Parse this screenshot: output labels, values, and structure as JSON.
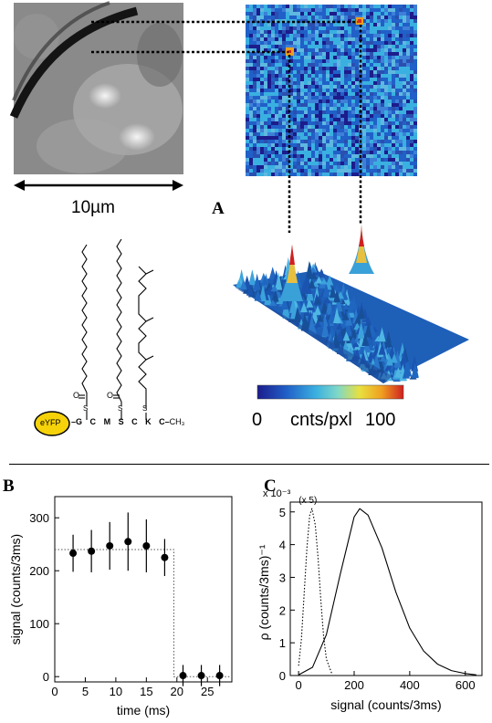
{
  "panel_a": {
    "label": "A",
    "scale_bar_label": "10µm",
    "colorbar": {
      "min_label": "0",
      "unit_label": "cnts/pxl",
      "max_label": "100",
      "colors": [
        "#1c1c8c",
        "#2060c8",
        "#3ab0e0",
        "#7fd8c8",
        "#e8e040",
        "#f0a020",
        "#d02020"
      ]
    },
    "molecule": {
      "protein_label": "eYFP",
      "sequence": [
        "G",
        "C",
        "M",
        "S",
        "C",
        "K",
        "C"
      ],
      "terminal_group": "CH₃",
      "bond_atoms": [
        "O",
        "O",
        "S",
        "S",
        "S"
      ]
    }
  },
  "panel_b": {
    "label": "B",
    "chart_data": {
      "type": "scatter",
      "xlabel": "time (ms)",
      "ylabel": "signal (counts/3ms)",
      "xlim": [
        0,
        29
      ],
      "ylim": [
        -10,
        340
      ],
      "x_ticks": [
        "0",
        "5",
        "10",
        "15",
        "20",
        "25"
      ],
      "y_ticks": [
        "0",
        "100",
        "200",
        "300"
      ],
      "series": [
        {
          "x": [
            3,
            6,
            9,
            12,
            15,
            18,
            21,
            24,
            27
          ],
          "y": [
            233,
            237,
            247,
            255,
            247,
            225,
            2,
            2,
            2
          ],
          "err": [
            35,
            40,
            45,
            55,
            50,
            35,
            20,
            20,
            20
          ]
        }
      ],
      "step_fit": {
        "x": [
          0,
          19.5,
          19.5,
          29
        ],
        "y": [
          240,
          240,
          0,
          0
        ]
      }
    }
  },
  "panel_c": {
    "label": "C",
    "chart_data": {
      "type": "line",
      "xlabel": "signal (counts/3ms)",
      "ylabel": "ρ (counts/3ms)⁻¹",
      "exponent_label": "x 10⁻³",
      "xlim": [
        -30,
        660
      ],
      "ylim": [
        0,
        5.3
      ],
      "x_ticks": [
        "0",
        "200",
        "400",
        "600"
      ],
      "y_ticks": [
        "0",
        "1",
        "2",
        "3",
        "4",
        "5"
      ],
      "annotation": "(x 5)",
      "series": [
        {
          "style": "solid",
          "peak_x": 220,
          "peak_y": 5.1,
          "x": [
            0,
            50,
            100,
            150,
            200,
            220,
            250,
            300,
            350,
            400,
            450,
            500,
            550,
            600,
            640
          ],
          "y": [
            0.02,
            0.25,
            1.25,
            3.1,
            4.85,
            5.1,
            4.9,
            3.9,
            2.55,
            1.45,
            0.75,
            0.35,
            0.15,
            0.06,
            0.02
          ]
        },
        {
          "style": "dotted",
          "peak_x": 48,
          "peak_y": 5.1,
          "x": [
            0,
            10,
            20,
            30,
            40,
            48,
            60,
            70,
            80,
            90,
            100,
            120
          ],
          "y": [
            0.3,
            1.1,
            2.5,
            3.9,
            4.9,
            5.1,
            4.6,
            3.6,
            2.3,
            1.2,
            0.5,
            0.05
          ]
        }
      ]
    }
  }
}
